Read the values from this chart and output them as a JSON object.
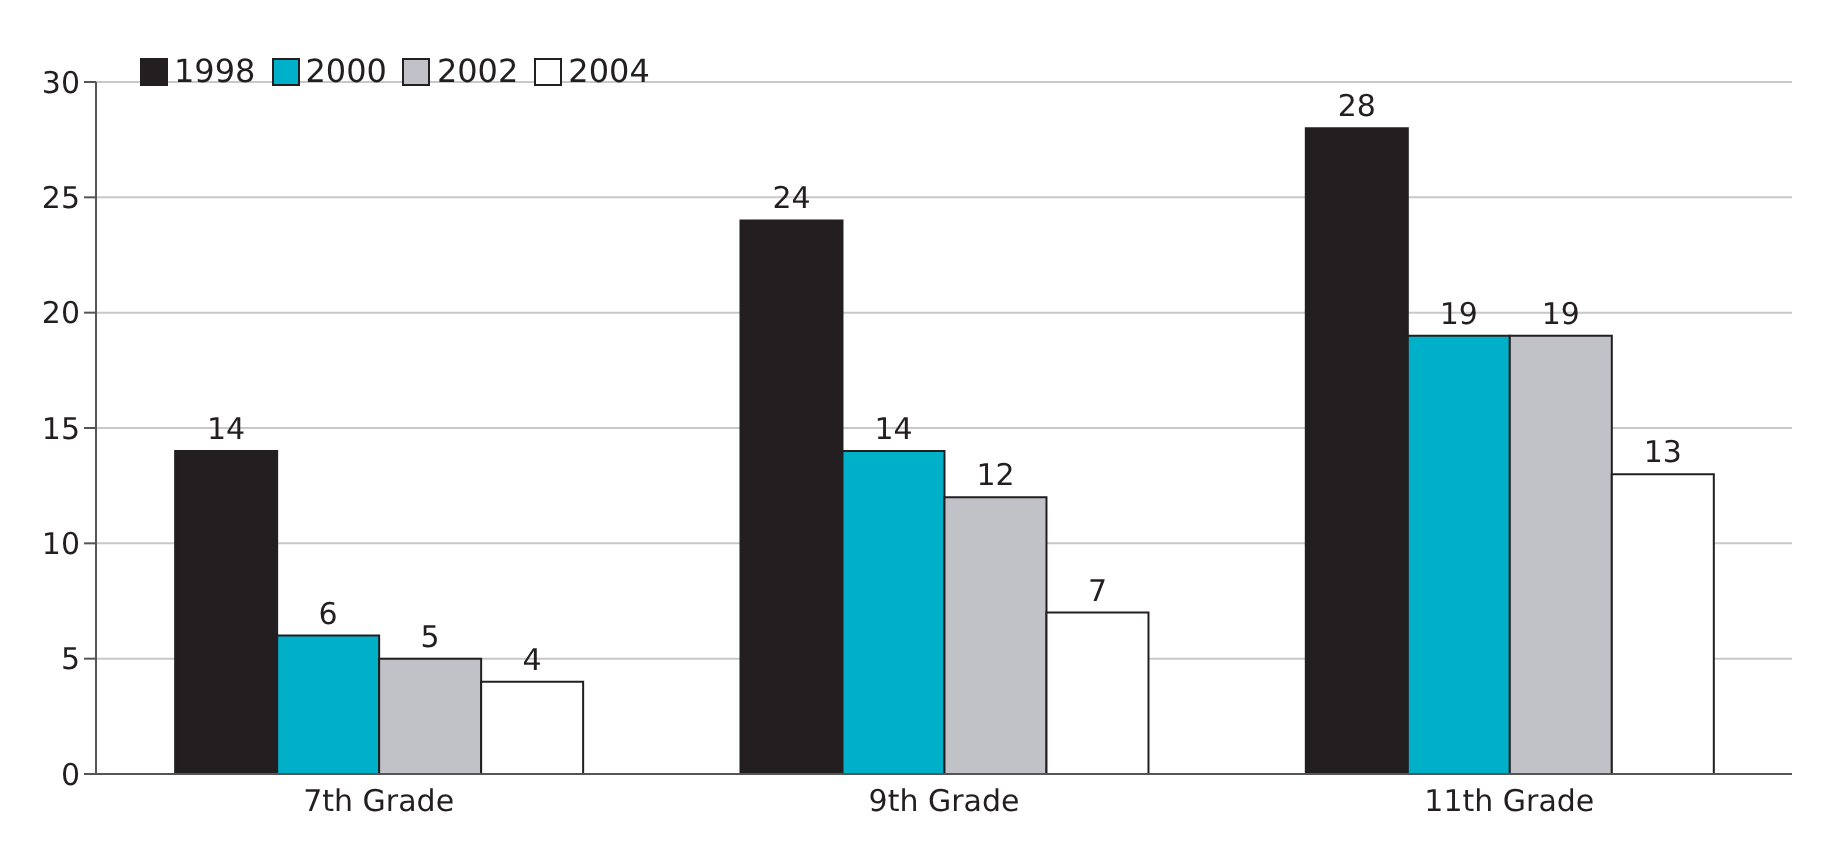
{
  "chart_data": {
    "type": "bar",
    "categories": [
      "7th Grade",
      "9th Grade",
      "11th Grade"
    ],
    "series": [
      {
        "name": "1998",
        "color": "#231f20",
        "values": [
          14,
          24,
          28
        ]
      },
      {
        "name": "2000",
        "color": "#00b0c8",
        "values": [
          6,
          14,
          19
        ]
      },
      {
        "name": "2002",
        "color": "#c0c2c8",
        "values": [
          5,
          12,
          19
        ]
      },
      {
        "name": "2004",
        "color": "#ffffff",
        "values": [
          4,
          7,
          13
        ]
      }
    ],
    "ylim": [
      0,
      30
    ],
    "yticks": [
      0,
      5,
      10,
      15,
      20,
      25,
      30
    ],
    "grid": "y",
    "legend": "top left",
    "data_labels": true
  }
}
